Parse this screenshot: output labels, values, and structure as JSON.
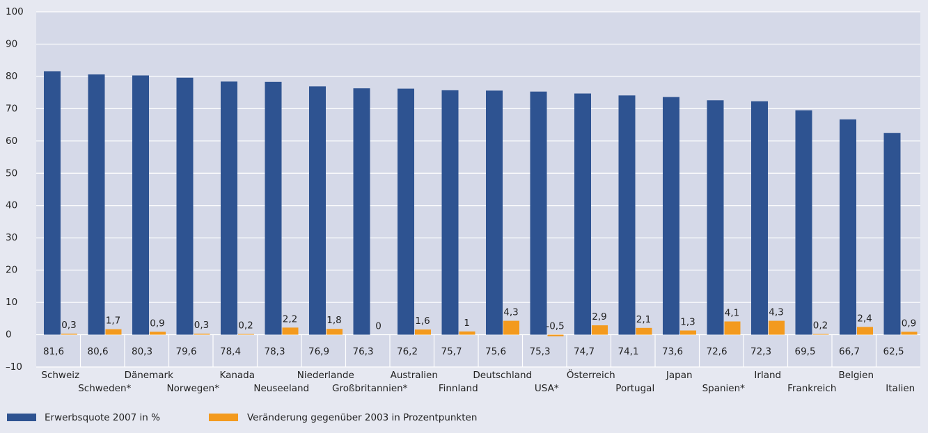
{
  "chart_data": {
    "type": "bar",
    "categories": [
      "Schweiz",
      "Schweden*",
      "Dänemark",
      "Norwegen*",
      "Kanada",
      "Neuseeland",
      "Niederlande",
      "Großbritannien*",
      "Australien",
      "Finnland",
      "Deutschland",
      "USA*",
      "Österreich",
      "Portugal",
      "Japan",
      "Spanien*",
      "Irland",
      "Frankreich",
      "Belgien",
      "Italien"
    ],
    "series": [
      {
        "name": "Erwerbsquote 2007 in %",
        "color": "#2e5391",
        "values": [
          81.6,
          80.6,
          80.3,
          79.6,
          78.4,
          78.3,
          76.9,
          76.3,
          76.2,
          75.7,
          75.6,
          75.3,
          74.7,
          74.1,
          73.6,
          72.6,
          72.3,
          69.5,
          66.7,
          62.5
        ],
        "value_labels": [
          "81,6",
          "80,6",
          "80,3",
          "79,6",
          "78,4",
          "78,3",
          "76,9",
          "76,3",
          "76,2",
          "75,7",
          "75,6",
          "75,3",
          "74,7",
          "74,1",
          "73,6",
          "72,6",
          "72,3",
          "69,5",
          "66,7",
          "62,5"
        ]
      },
      {
        "name": "Veränderung gegenüber 2003 in Prozentpunkten",
        "color": "#f39a1e",
        "values": [
          0.3,
          1.7,
          0.9,
          0.3,
          0.2,
          2.2,
          1.8,
          0,
          1.6,
          1,
          4.3,
          -0.5,
          2.9,
          2.1,
          1.3,
          4.1,
          4.3,
          0.2,
          2.4,
          0.9
        ],
        "value_labels": [
          "0,3",
          "1,7",
          "0,9",
          "0,3",
          "0,2",
          "2,2",
          "1,8",
          "0",
          "1,6",
          "1",
          "4,3",
          "-0,5",
          "2,9",
          "2,1",
          "1,3",
          "4,1",
          "4,3",
          "0,2",
          "2,4",
          "0,9"
        ]
      }
    ],
    "ylim": [
      -10,
      100
    ],
    "yticks": [
      {
        "value": -10,
        "label": "–10"
      },
      0,
      10,
      20,
      30,
      40,
      50,
      60,
      70,
      80,
      90,
      100
    ],
    "grid": true,
    "legend": "bottom"
  }
}
